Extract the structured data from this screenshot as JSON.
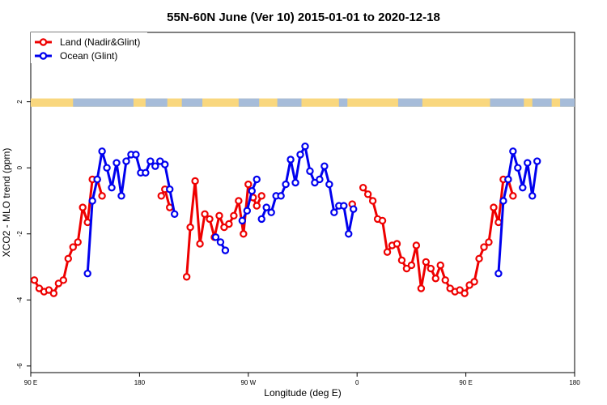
{
  "chart_data": {
    "type": "line",
    "title": "55N-60N June (Ver 10)   2015-01-01 to 2020-12-18",
    "xlabel": "Longitude (deg E)",
    "ylabel": "XCO2 - MLO trend (ppm)",
    "xlim": [
      90,
      540
    ],
    "ylim": [
      -6.2,
      4.1
    ],
    "legend_position": "top-left",
    "x_ticks": [
      {
        "value": 90,
        "label": "90 E"
      },
      {
        "value": 180,
        "label": "180"
      },
      {
        "value": 270,
        "label": "90 W"
      },
      {
        "value": 360,
        "label": "0"
      },
      {
        "value": 450,
        "label": "90 E"
      },
      {
        "value": 540,
        "label": "180"
      }
    ],
    "y_ticks": [
      {
        "value": 2,
        "label": "2"
      },
      {
        "value": 0,
        "label": "0"
      },
      {
        "value": -2,
        "label": "-2"
      },
      {
        "value": -4,
        "label": "-4"
      },
      {
        "value": -6,
        "label": "-6"
      }
    ],
    "land_ocean_band": {
      "y_range": [
        1.85,
        2.1
      ],
      "land_color": "#f9d77e",
      "ocean_color": "#a6bcd9",
      "ocean_segments": [
        [
          125,
          175
        ],
        [
          185,
          203
        ],
        [
          215,
          232
        ],
        [
          262,
          279
        ],
        [
          294,
          314
        ],
        [
          345,
          352
        ],
        [
          394,
          414
        ],
        [
          470,
          498
        ],
        [
          505,
          521
        ],
        [
          528,
          540
        ]
      ]
    },
    "series": [
      {
        "name": "Land (Nadir&Glint)",
        "color": "#ee0000",
        "segments": [
          [
            [
              93,
              -3.4
            ],
            [
              97,
              -3.65
            ],
            [
              101,
              -3.75
            ],
            [
              105,
              -3.7
            ],
            [
              109,
              -3.8
            ],
            [
              113,
              -3.5
            ],
            [
              117,
              -3.4
            ],
            [
              121,
              -2.75
            ],
            [
              125,
              -2.4
            ],
            [
              129,
              -2.25
            ],
            [
              133,
              -1.2
            ],
            [
              137,
              -1.65
            ],
            [
              141,
              -0.35
            ],
            [
              145,
              -0.35
            ],
            [
              149,
              -0.85
            ]
          ],
          [
            [
              198,
              -0.85
            ],
            [
              201,
              -0.65
            ],
            [
              205,
              -1.2
            ]
          ],
          [
            [
              219,
              -3.3
            ],
            [
              222,
              -1.8
            ],
            [
              226,
              -0.4
            ],
            [
              230,
              -2.3
            ],
            [
              234,
              -1.4
            ],
            [
              238,
              -1.55
            ],
            [
              242,
              -2.1
            ],
            [
              246,
              -1.45
            ],
            [
              250,
              -1.8
            ],
            [
              254,
              -1.7
            ],
            [
              258,
              -1.45
            ],
            [
              262,
              -1.0
            ],
            [
              266,
              -2.0
            ],
            [
              270,
              -0.5
            ],
            [
              274,
              -0.9
            ],
            [
              277,
              -1.15
            ],
            [
              281,
              -0.85
            ]
          ],
          [
            [
              356,
              -1.1
            ]
          ],
          [
            [
              365,
              -0.6
            ],
            [
              369,
              -0.8
            ],
            [
              373,
              -1.0
            ],
            [
              377,
              -1.55
            ],
            [
              381,
              -1.6
            ],
            [
              385,
              -2.55
            ],
            [
              389,
              -2.35
            ],
            [
              393,
              -2.3
            ],
            [
              397,
              -2.8
            ],
            [
              401,
              -3.05
            ],
            [
              405,
              -2.95
            ],
            [
              409,
              -2.35
            ],
            [
              413,
              -3.65
            ],
            [
              417,
              -2.85
            ],
            [
              421,
              -3.05
            ],
            [
              425,
              -3.35
            ],
            [
              429,
              -2.95
            ],
            [
              433,
              -3.4
            ],
            [
              437,
              -3.65
            ],
            [
              441,
              -3.75
            ],
            [
              445,
              -3.7
            ],
            [
              449,
              -3.8
            ],
            [
              453,
              -3.55
            ],
            [
              457,
              -3.45
            ],
            [
              461,
              -2.75
            ],
            [
              465,
              -2.4
            ],
            [
              469,
              -2.25
            ],
            [
              473,
              -1.2
            ],
            [
              477,
              -1.65
            ],
            [
              481,
              -0.35
            ],
            [
              485,
              -0.35
            ],
            [
              489,
              -0.85
            ]
          ]
        ]
      },
      {
        "name": "Ocean (Glint)",
        "color": "#0000ee",
        "segments": [
          [
            [
              137,
              -3.2
            ],
            [
              141,
              -1.0
            ],
            [
              145,
              -0.35
            ],
            [
              149,
              0.5
            ],
            [
              153,
              0.0
            ],
            [
              157,
              -0.6
            ],
            [
              161,
              0.15
            ],
            [
              165,
              -0.85
            ],
            [
              169,
              0.2
            ],
            [
              173,
              0.4
            ],
            [
              177,
              0.4
            ],
            [
              181,
              -0.15
            ],
            [
              185,
              -0.15
            ],
            [
              189,
              0.2
            ],
            [
              193,
              0.05
            ],
            [
              197,
              0.2
            ],
            [
              201,
              0.1
            ],
            [
              205,
              -0.65
            ],
            [
              209,
              -1.4
            ]
          ],
          [
            [
              243,
              -2.1
            ],
            [
              247,
              -2.25
            ],
            [
              251,
              -2.5
            ]
          ],
          [
            [
              265,
              -1.6
            ],
            [
              269,
              -1.3
            ],
            [
              273,
              -0.7
            ],
            [
              277,
              -0.35
            ]
          ],
          [
            [
              281,
              -1.55
            ],
            [
              285,
              -1.2
            ],
            [
              289,
              -1.35
            ],
            [
              293,
              -0.85
            ],
            [
              297,
              -0.85
            ],
            [
              301,
              -0.5
            ],
            [
              305,
              0.25
            ],
            [
              309,
              -0.45
            ],
            [
              313,
              0.4
            ],
            [
              317,
              0.65
            ],
            [
              321,
              -0.1
            ],
            [
              325,
              -0.45
            ],
            [
              329,
              -0.35
            ],
            [
              333,
              0.05
            ],
            [
              337,
              -0.5
            ],
            [
              341,
              -1.35
            ],
            [
              345,
              -1.15
            ],
            [
              349,
              -1.15
            ],
            [
              353,
              -2.0
            ],
            [
              357,
              -1.25
            ]
          ],
          [
            [
              477,
              -3.2
            ],
            [
              481,
              -1.0
            ],
            [
              485,
              -0.35
            ],
            [
              489,
              0.5
            ],
            [
              493,
              0.0
            ],
            [
              497,
              -0.6
            ],
            [
              501,
              0.15
            ],
            [
              505,
              -0.85
            ],
            [
              509,
              0.2
            ]
          ]
        ]
      }
    ]
  }
}
